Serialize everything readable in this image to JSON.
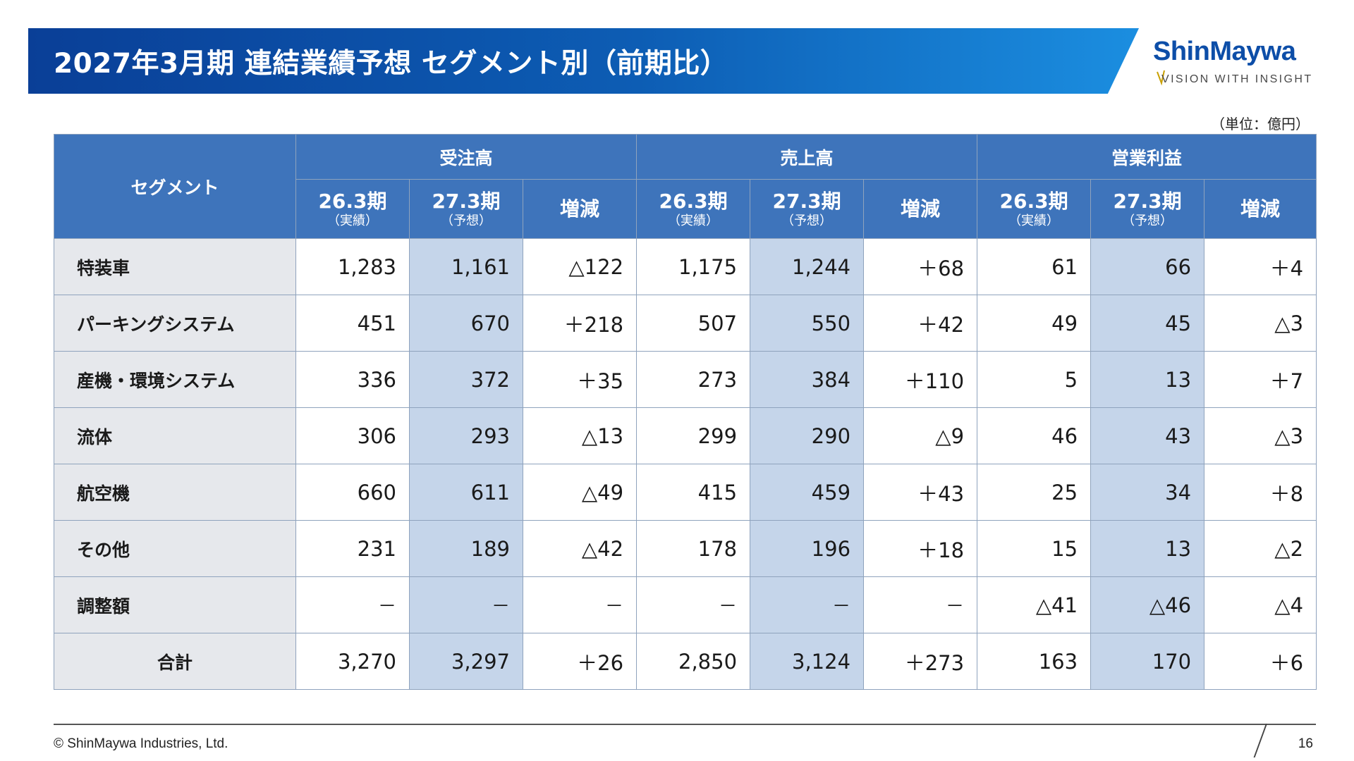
{
  "title": "2027年3月期 連結業績予想 セグメント別（前期比）",
  "logo": {
    "name": "ShinMaywa",
    "tagline": "VISION WITH INSIGHT",
    "color": "#0d4ea8"
  },
  "unit_label": "（単位：億円）",
  "table": {
    "segment_header": "セグメント",
    "groups": [
      "受注高",
      "売上高",
      "営業利益"
    ],
    "sub_headers": [
      {
        "main": "26.3期",
        "note": "（実績）"
      },
      {
        "main": "27.3期",
        "note": "（予想）"
      },
      {
        "main": "増減",
        "note": ""
      }
    ],
    "rows": [
      {
        "name": "特装車",
        "values": [
          "1,283",
          "1,161",
          "△122",
          "1,175",
          "1,244",
          "＋68",
          "61",
          "66",
          "＋4"
        ]
      },
      {
        "name": "パーキングシステム",
        "values": [
          "451",
          "670",
          "＋218",
          "507",
          "550",
          "＋42",
          "49",
          "45",
          "△3"
        ]
      },
      {
        "name": "産機・環境システム",
        "values": [
          "336",
          "372",
          "＋35",
          "273",
          "384",
          "＋110",
          "5",
          "13",
          "＋7"
        ]
      },
      {
        "name": "流体",
        "values": [
          "306",
          "293",
          "△13",
          "299",
          "290",
          "△9",
          "46",
          "43",
          "△3"
        ]
      },
      {
        "name": "航空機",
        "values": [
          "660",
          "611",
          "△49",
          "415",
          "459",
          "＋43",
          "25",
          "34",
          "＋8"
        ]
      },
      {
        "name": "その他",
        "values": [
          "231",
          "189",
          "△42",
          "178",
          "196",
          "＋18",
          "15",
          "13",
          "△2"
        ]
      },
      {
        "name": "調整額",
        "values": [
          "－",
          "－",
          "－",
          "－",
          "－",
          "－",
          "△41",
          "△46",
          "△4"
        ]
      },
      {
        "name": "合計",
        "values": [
          "3,270",
          "3,297",
          "＋26",
          "2,850",
          "3,124",
          "＋273",
          "163",
          "170",
          "＋6"
        ]
      }
    ]
  },
  "colors": {
    "header_bg": "#3e74bb",
    "forecast_bg": "#c5d5ea",
    "segment_bg": "#e6e8ec",
    "title_band": "#0d5db4"
  },
  "footer": {
    "copyright": "© ShinMaywa Industries, Ltd.",
    "page_number": "16"
  }
}
